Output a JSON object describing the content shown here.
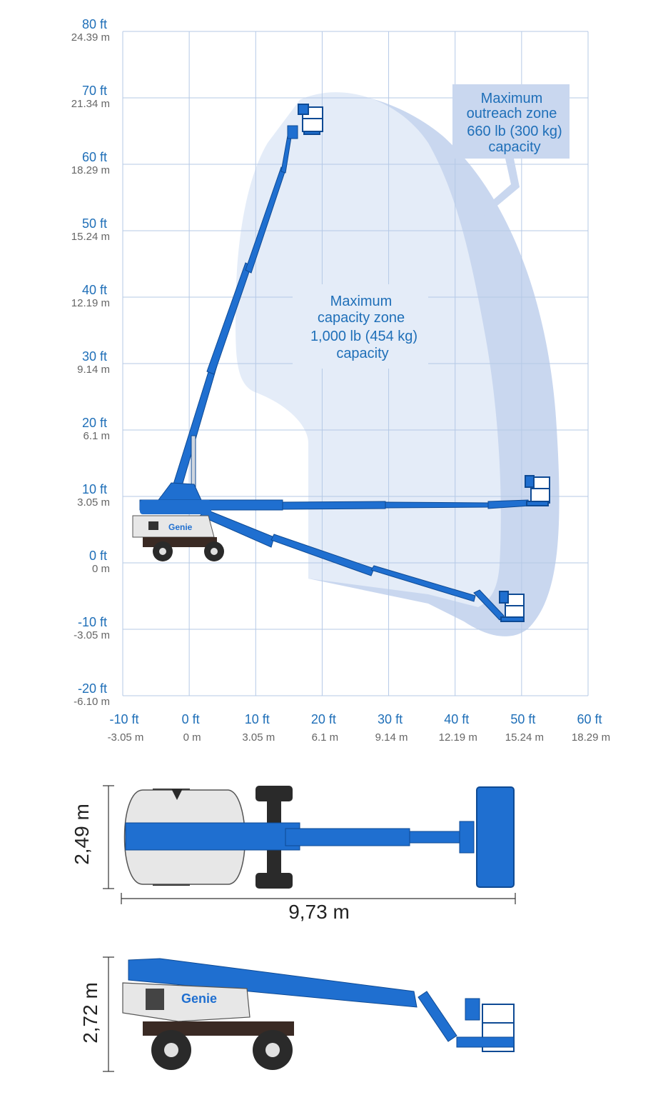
{
  "chart_data": {
    "type": "diagram",
    "y_ticks": [
      {
        "ft": "80 ft",
        "m": "24.39 m"
      },
      {
        "ft": "70 ft",
        "m": "21.34 m"
      },
      {
        "ft": "60 ft",
        "m": "18.29 m"
      },
      {
        "ft": "50 ft",
        "m": "15.24 m"
      },
      {
        "ft": "40 ft",
        "m": "12.19 m"
      },
      {
        "ft": "30 ft",
        "m": "9.14 m"
      },
      {
        "ft": "20 ft",
        "m": "6.1 m"
      },
      {
        "ft": "10 ft",
        "m": "3.05 m"
      },
      {
        "ft": "0 ft",
        "m": "0 m"
      },
      {
        "ft": "-10 ft",
        "m": "-3.05 m"
      },
      {
        "ft": "-20 ft",
        "m": "-6.10 m"
      }
    ],
    "x_ticks": [
      {
        "ft": "-10 ft",
        "m": "-3.05 m"
      },
      {
        "ft": "0 ft",
        "m": "0 m"
      },
      {
        "ft": "10 ft",
        "m": "3.05 m"
      },
      {
        "ft": "20 ft",
        "m": "6.1 m"
      },
      {
        "ft": "30 ft",
        "m": "9.14 m"
      },
      {
        "ft": "40 ft",
        "m": "12.19 m"
      },
      {
        "ft": "50 ft",
        "m": "15.24 m"
      },
      {
        "ft": "60 ft",
        "m": "18.29 m"
      }
    ],
    "x_range_ft": [
      -10,
      60
    ],
    "y_range_ft": [
      -20,
      80
    ],
    "grid": true,
    "zones": {
      "capacity": [
        "Maximum",
        "capacity zone",
        "1,000 lb (454 kg)",
        "capacity"
      ],
      "outreach": [
        "Maximum",
        "outreach zone",
        "660 lb (300 kg)",
        "capacity"
      ]
    },
    "boom_positions": [
      {
        "name": "high",
        "tip_ft": [
          17,
          67
        ]
      },
      {
        "name": "horizontal",
        "tip_ft": [
          51,
          10
        ]
      },
      {
        "name": "low",
        "tip_ft": [
          48,
          -7
        ]
      }
    ]
  },
  "dimensions": {
    "width": "2,49 m",
    "length": "9,73 m",
    "height": "2,72 m"
  },
  "branding": {
    "logo": "Genie"
  },
  "colors": {
    "boom": "#1f6fd0",
    "zone_light": "#e4ecf8",
    "zone_dark": "#c9d7ef",
    "grid": "#b5c9e6",
    "tick_ft": "#1f6fb8",
    "tick_m": "#666666",
    "chassis": "#3a2a24",
    "body": "#e7e7e7"
  }
}
